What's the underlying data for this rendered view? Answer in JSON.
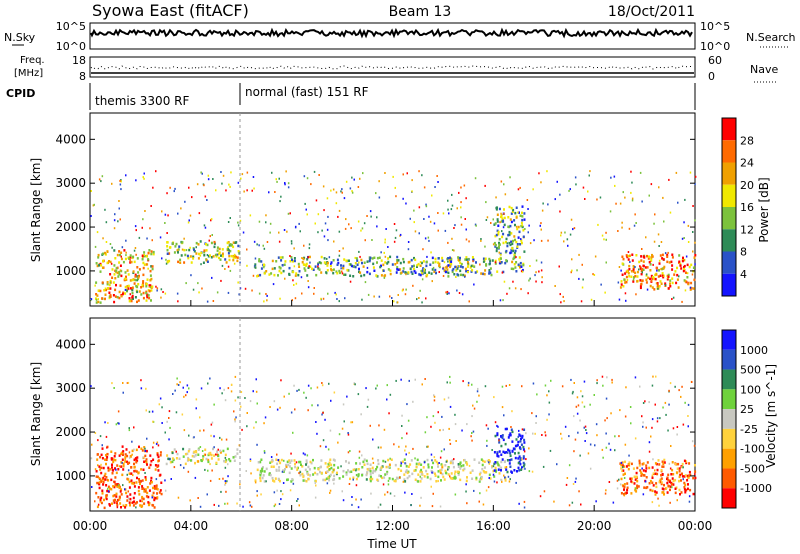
{
  "header": {
    "title": "Syowa East (fitACF)",
    "beam": "Beam 13",
    "date": "18/Oct/2011"
  },
  "panels": {
    "nsky": {
      "left_label": "N.Sky",
      "right_label": "N.Search",
      "left_ticks": [
        "10^5",
        "10^0"
      ],
      "right_ticks": [
        "10^5",
        "10^0"
      ]
    },
    "freq": {
      "left_label_1": "Freq.",
      "left_label_2": "[MHz]",
      "right_label": "Nave",
      "left_ticks": [
        "18",
        "8"
      ],
      "right_ticks": [
        "60",
        "0"
      ]
    },
    "cpid": {
      "label": "CPID",
      "modes": [
        "themis 3300 RF",
        "normal (fast) 151 RF"
      ]
    }
  },
  "colors": {
    "power": [
      "#1414ff",
      "#2a52c8",
      "#2e8b57",
      "#7cc23c",
      "#f0e800",
      "#f0a000",
      "#ff6a00",
      "#ff0000"
    ],
    "velocity": [
      "#ff0000",
      "#ff5a00",
      "#ffa000",
      "#ffd23c",
      "#c8c8c0",
      "#6fd23c",
      "#2e8b57",
      "#2a52c8",
      "#1414ff"
    ]
  },
  "chart_data": [
    {
      "type": "heatmap",
      "name": "power",
      "xlabel": "",
      "ylabel": "Slant Range [km]",
      "xlim": [
        0,
        24
      ],
      "ylim": [
        200,
        4600
      ],
      "yticks": [
        1000,
        2000,
        3000,
        4000
      ],
      "colorbar": {
        "label": "Power [dB]",
        "ticks": [
          "4",
          "8",
          "12",
          "16",
          "20",
          "24",
          "28"
        ]
      },
      "echo_regions": [
        {
          "t0": 0.2,
          "t1": 2.5,
          "r0": 300,
          "r1": 1500,
          "level": 0.65
        },
        {
          "t0": 3.0,
          "t1": 5.9,
          "r0": 1200,
          "r1": 1700,
          "level": 0.5
        },
        {
          "t0": 6.5,
          "t1": 16.0,
          "r0": 900,
          "r1": 1350,
          "level": 0.4
        },
        {
          "t0": 16.0,
          "t1": 17.2,
          "r0": 1000,
          "r1": 2500,
          "level": 0.35
        },
        {
          "t0": 21.0,
          "t1": 24.0,
          "r0": 600,
          "r1": 1400,
          "level": 0.75
        }
      ]
    },
    {
      "type": "heatmap",
      "name": "velocity",
      "xlabel": "Time UT",
      "ylabel": "Slant Range [km]",
      "xlim": [
        0,
        24
      ],
      "ylim": [
        200,
        4600
      ],
      "xticks": [
        "00:00",
        "04:00",
        "08:00",
        "12:00",
        "16:00",
        "20:00",
        "00:00"
      ],
      "yticks": [
        1000,
        2000,
        3000,
        4000
      ],
      "colorbar": {
        "label": "Velocity [m s^-1]",
        "ticks": [
          "1000",
          "500",
          "100",
          "25",
          "-25",
          "-100",
          "-500",
          "-1000"
        ]
      },
      "echo_regions": [
        {
          "t0": 0.2,
          "t1": 2.8,
          "r0": 300,
          "r1": 1700,
          "level": -0.7
        },
        {
          "t0": 3.0,
          "t1": 5.9,
          "r0": 1300,
          "r1": 1650,
          "level": 0.0
        },
        {
          "t0": 6.5,
          "t1": 16.5,
          "r0": 900,
          "r1": 1400,
          "level": 0.0
        },
        {
          "t0": 16.0,
          "t1": 17.2,
          "r0": 1100,
          "r1": 2100,
          "level": 0.8
        },
        {
          "t0": 21.0,
          "t1": 24.0,
          "r0": 600,
          "r1": 1400,
          "level": -0.6
        }
      ]
    }
  ]
}
